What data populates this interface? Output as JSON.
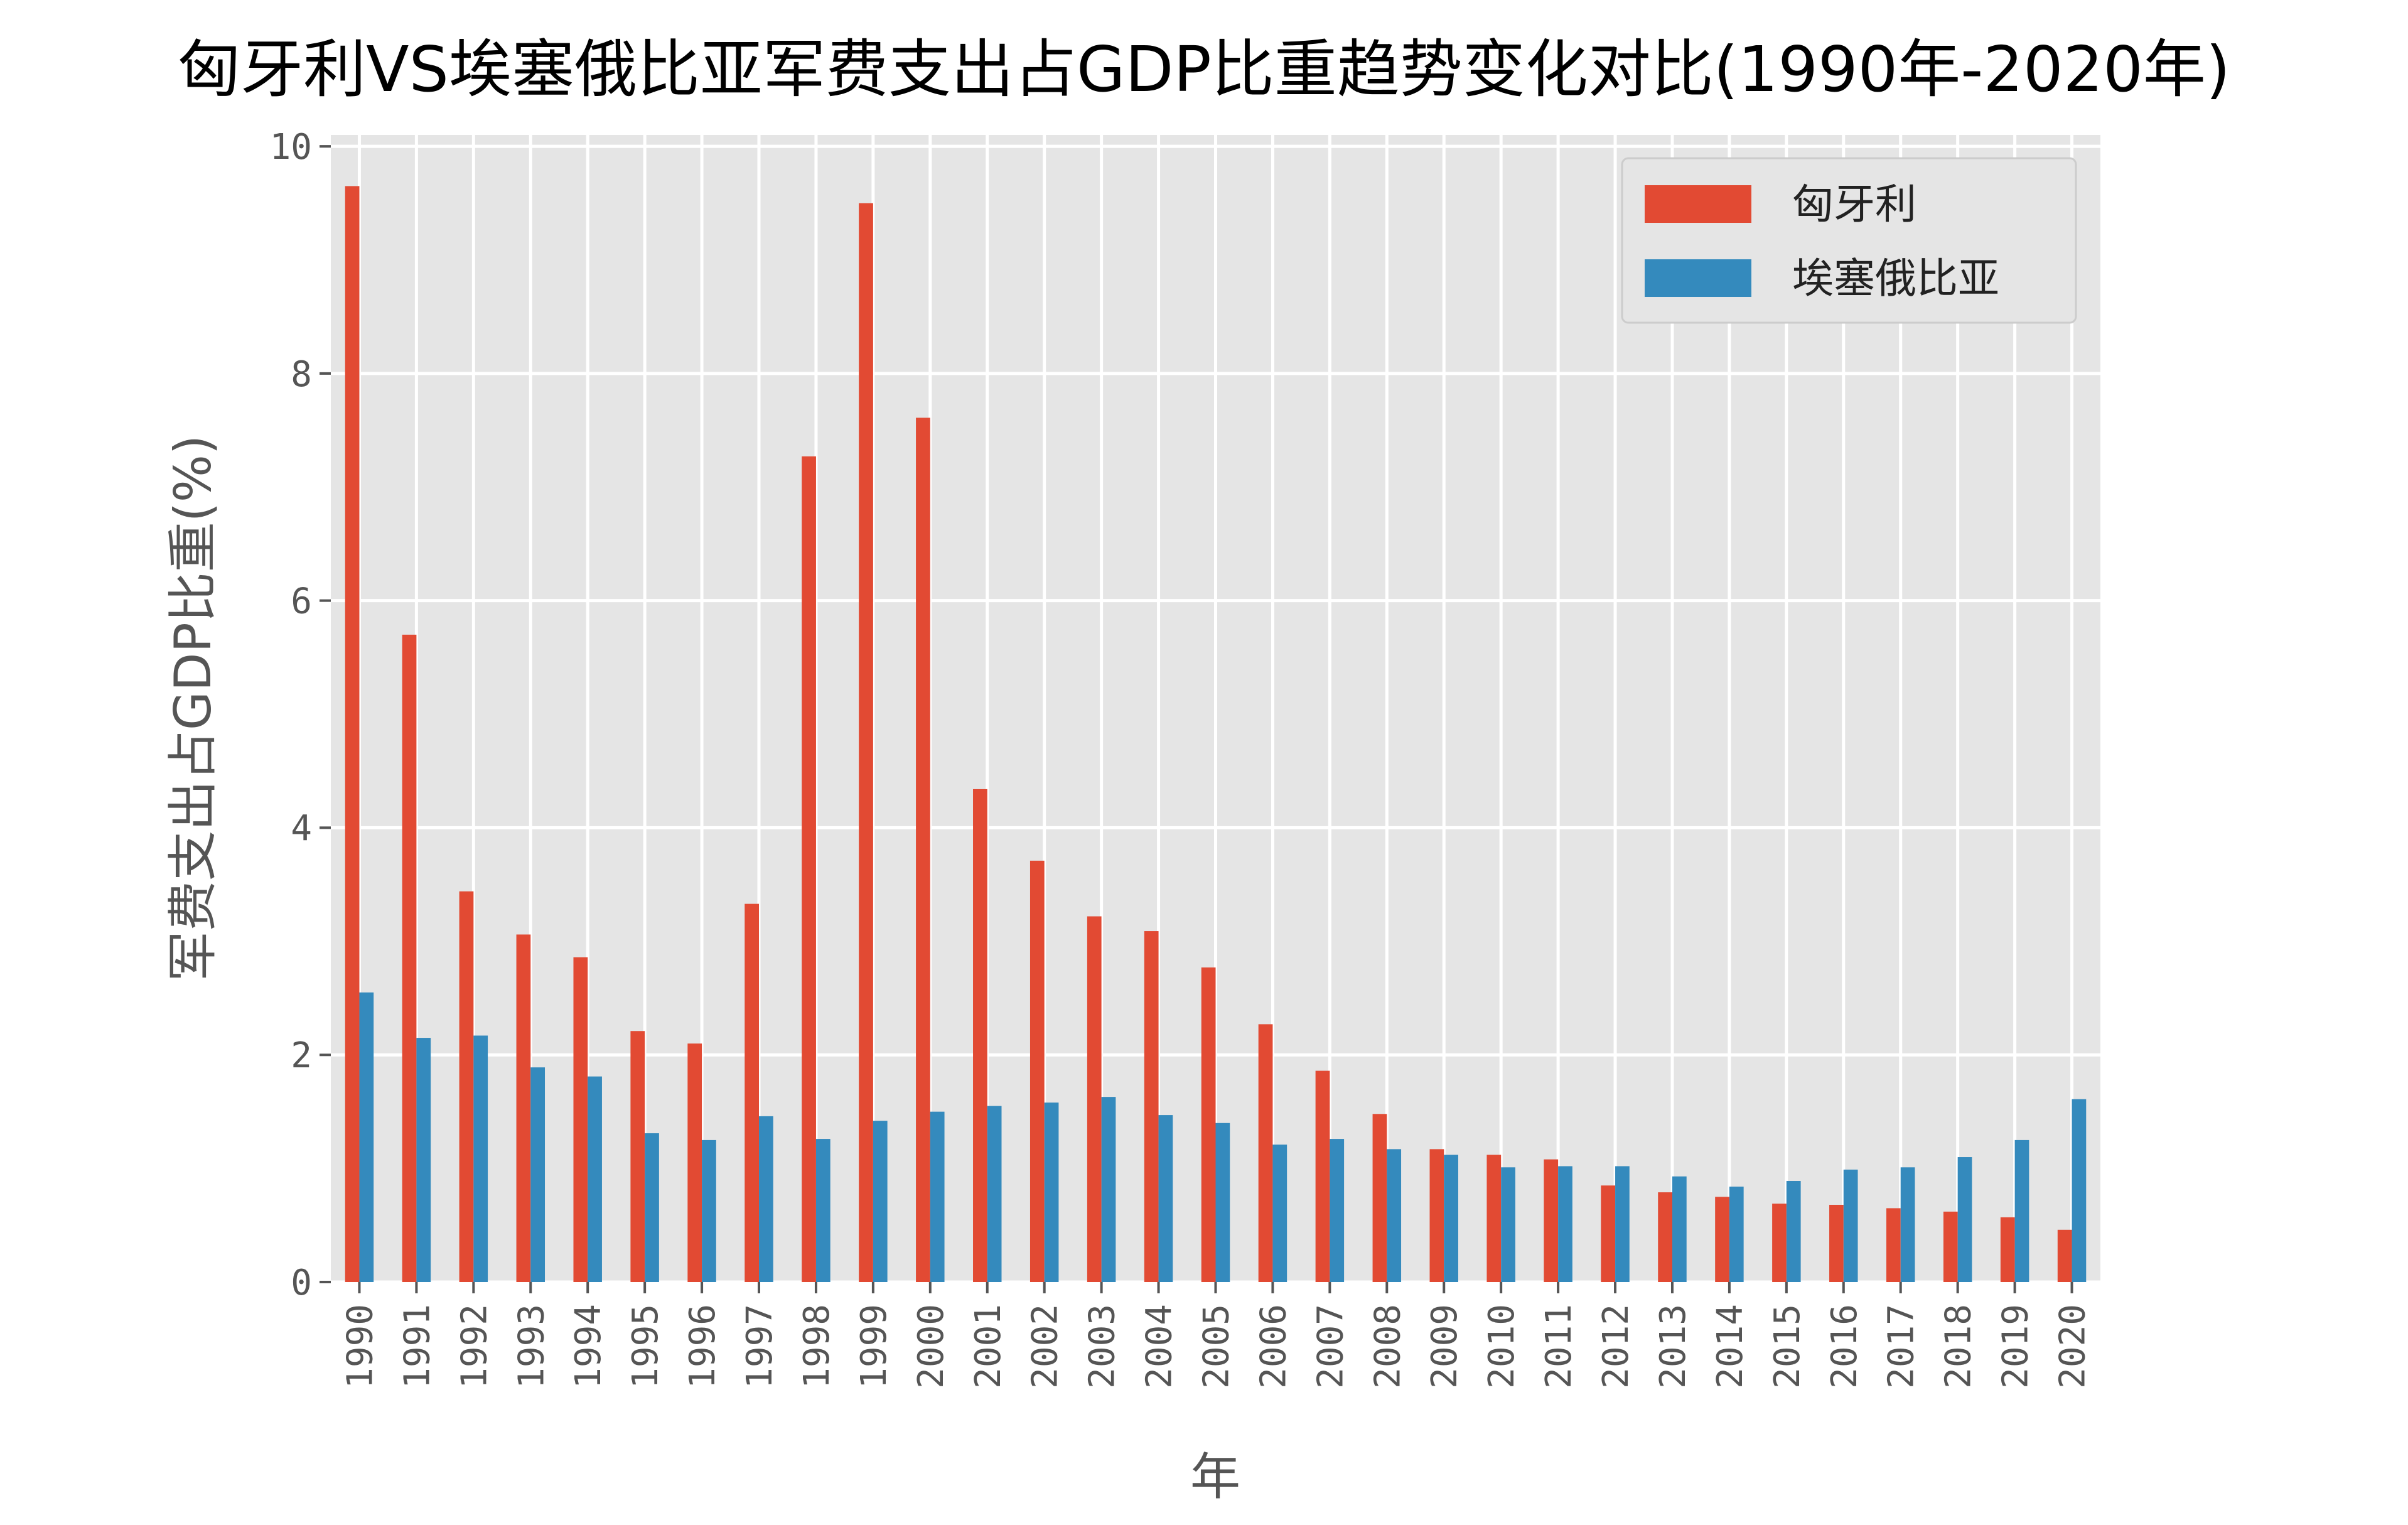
{
  "chart_data": {
    "type": "bar",
    "title": "匈牙利VS埃塞俄比亚军费支出占GDP比重趋势变化对比(1990年-2020年)",
    "xlabel": "年",
    "ylabel": "军费支出占GDP比重(%)",
    "ylim": [
      0,
      10.1
    ],
    "yticks": [
      0,
      2,
      4,
      6,
      8,
      10
    ],
    "grid": true,
    "legend_position": "top-right",
    "categories": [
      "1990",
      "1991",
      "1992",
      "1993",
      "1994",
      "1995",
      "1996",
      "1997",
      "1998",
      "1999",
      "2000",
      "2001",
      "2002",
      "2003",
      "2004",
      "2005",
      "2006",
      "2007",
      "2008",
      "2009",
      "2010",
      "2011",
      "2012",
      "2013",
      "2014",
      "2015",
      "2016",
      "2017",
      "2018",
      "2019",
      "2020"
    ],
    "series": [
      {
        "name": "匈牙利",
        "color": "#E24A33",
        "values": [
          9.65,
          5.7,
          3.44,
          3.06,
          2.86,
          2.21,
          2.1,
          3.33,
          7.27,
          9.5,
          7.61,
          4.34,
          3.71,
          3.22,
          3.09,
          2.77,
          2.27,
          1.86,
          1.48,
          1.17,
          1.12,
          1.08,
          0.85,
          0.79,
          0.75,
          0.69,
          0.68,
          0.65,
          0.62,
          0.57,
          0.46
        ]
      },
      {
        "name": "埃塞俄比亚",
        "color": "#348ABD",
        "values": [
          2.55,
          2.15,
          2.17,
          1.89,
          1.81,
          1.31,
          1.25,
          1.46,
          1.26,
          1.42,
          1.5,
          1.55,
          1.58,
          1.63,
          1.47,
          1.4,
          1.21,
          1.26,
          1.17,
          1.12,
          1.01,
          1.02,
          1.02,
          0.93,
          0.84,
          0.89,
          0.99,
          1.01,
          1.1,
          1.25,
          1.61
        ]
      }
    ],
    "colors": {
      "plot_background": "#E5E5E5",
      "grid": "#FFFFFF"
    }
  }
}
